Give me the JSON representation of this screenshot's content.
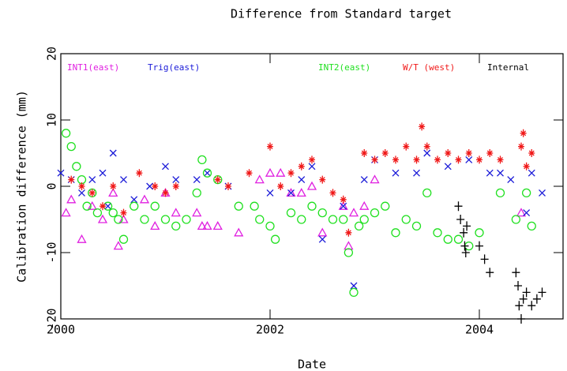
{
  "chart_data": {
    "type": "scatter",
    "title": "Difference from Standard target",
    "xlabel": "Date",
    "ylabel": "Calibration difference (mm)",
    "xlim": [
      2000,
      2004.8
    ],
    "xticks": [
      2000,
      2002,
      2004
    ],
    "ylim": [
      -20,
      20
    ],
    "yticks": [
      -20,
      -10,
      0,
      10,
      20
    ],
    "series": [
      {
        "name": "INT1(east)",
        "color": "#e020e0",
        "marker": "triangle",
        "x": [
          2000.05,
          2000.1,
          2000.2,
          2000.3,
          2000.4,
          2000.5,
          2000.55,
          2000.6,
          2000.8,
          2000.9,
          2001.0,
          2001.1,
          2001.3,
          2001.35,
          2001.4,
          2001.5,
          2001.7,
          2001.9,
          2002.0,
          2002.1,
          2002.2,
          2002.3,
          2002.4,
          2002.5,
          2002.7,
          2002.75,
          2002.8,
          2002.9,
          2003.0,
          2004.4
        ],
        "values": [
          -4,
          -2,
          -8,
          -3,
          -5,
          -1,
          -9,
          -5,
          -2,
          -6,
          -1,
          -4,
          -4,
          -6,
          -6,
          -6,
          -7,
          1,
          2,
          2,
          -1,
          -1,
          0,
          -7,
          -3,
          -9,
          -4,
          -3,
          1,
          -4
        ]
      },
      {
        "name": "Trig(east)",
        "color": "#1a1ad8",
        "marker": "cross",
        "x": [
          2000.0,
          2000.1,
          2000.2,
          2000.3,
          2000.4,
          2000.45,
          2000.5,
          2000.6,
          2000.7,
          2000.85,
          2001.0,
          2001.1,
          2001.3,
          2001.4,
          2001.6,
          2002.0,
          2002.2,
          2002.3,
          2002.4,
          2002.5,
          2002.7,
          2002.8,
          2002.9,
          2003.0,
          2003.2,
          2003.4,
          2003.5,
          2003.7,
          2003.9,
          2004.1,
          2004.2,
          2004.3,
          2004.45,
          2004.5,
          2004.6
        ],
        "values": [
          2,
          1,
          -1,
          1,
          2,
          -3,
          5,
          1,
          -2,
          0,
          3,
          1,
          1,
          2,
          0,
          -1,
          -1,
          1,
          3,
          -8,
          -3,
          -15,
          1,
          4,
          2,
          2,
          5,
          3,
          4,
          2,
          2,
          1,
          -4,
          2,
          -1
        ]
      },
      {
        "name": "INT2(east)",
        "color": "#20e020",
        "marker": "circle",
        "x": [
          2000.05,
          2000.1,
          2000.15,
          2000.2,
          2000.25,
          2000.3,
          2000.35,
          2000.45,
          2000.5,
          2000.55,
          2000.6,
          2000.7,
          2000.8,
          2000.9,
          2001.0,
          2001.1,
          2001.2,
          2001.3,
          2001.35,
          2001.4,
          2001.5,
          2001.7,
          2001.85,
          2001.9,
          2002.0,
          2002.05,
          2002.2,
          2002.3,
          2002.4,
          2002.5,
          2002.6,
          2002.7,
          2002.75,
          2002.8,
          2002.85,
          2002.9,
          2003.0,
          2003.1,
          2003.2,
          2003.3,
          2003.4,
          2003.5,
          2003.6,
          2003.7,
          2003.8,
          2003.9,
          2004.0,
          2004.2,
          2004.35,
          2004.45,
          2004.5
        ],
        "values": [
          8,
          6,
          3,
          1,
          -3,
          -1,
          -4,
          -3,
          -4,
          -5,
          -8,
          -3,
          -5,
          -3,
          -5,
          -6,
          -5,
          -1,
          4,
          2,
          1,
          -3,
          -3,
          -5,
          -6,
          -8,
          -4,
          -5,
          -3,
          -4,
          -5,
          -5,
          -10,
          -16,
          -6,
          -5,
          -4,
          -3,
          -7,
          -5,
          -6,
          -1,
          -7,
          -8,
          -8,
          -9,
          -7,
          -1,
          -5,
          -1,
          -6
        ]
      },
      {
        "name": "W/T (west)",
        "color": "#f01818",
        "marker": "asterisk",
        "x": [
          2000.1,
          2000.2,
          2000.3,
          2000.4,
          2000.5,
          2000.6,
          2000.75,
          2000.9,
          2001.0,
          2001.1,
          2001.5,
          2001.6,
          2001.8,
          2002.0,
          2002.1,
          2002.2,
          2002.3,
          2002.4,
          2002.5,
          2002.6,
          2002.7,
          2002.75,
          2002.9,
          2003.0,
          2003.1,
          2003.2,
          2003.3,
          2003.4,
          2003.45,
          2003.5,
          2003.6,
          2003.7,
          2003.8,
          2003.9,
          2004.0,
          2004.1,
          2004.2,
          2004.4,
          2004.42,
          2004.45,
          2004.5
        ],
        "values": [
          1,
          0,
          -1,
          -3,
          0,
          -4,
          2,
          0,
          -1,
          0,
          1,
          0,
          2,
          6,
          0,
          2,
          3,
          4,
          1,
          -1,
          -2,
          -7,
          5,
          4,
          5,
          4,
          6,
          4,
          9,
          6,
          4,
          5,
          4,
          5,
          4,
          5,
          4,
          6,
          8,
          3,
          5
        ]
      },
      {
        "name": "Internal",
        "color": "#000000",
        "marker": "plus",
        "x": [
          2003.8,
          2003.82,
          2003.85,
          2003.86,
          2003.87,
          2003.88,
          2004.0,
          2004.05,
          2004.1,
          2004.35,
          2004.37,
          2004.38,
          2004.4,
          2004.42,
          2004.45,
          2004.5,
          2004.55,
          2004.6
        ],
        "values": [
          -3,
          -5,
          -7,
          -9,
          -10,
          -6,
          -9,
          -11,
          -13,
          -13,
          -15,
          -18,
          -20,
          -17,
          -16,
          -18,
          -17,
          -16
        ]
      }
    ]
  }
}
